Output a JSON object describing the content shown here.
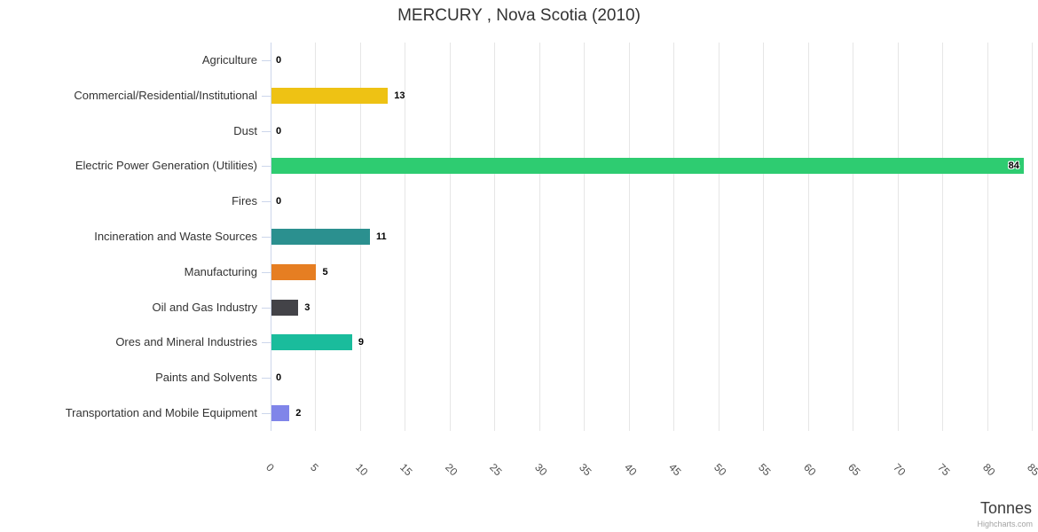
{
  "chart_data": {
    "type": "bar",
    "orientation": "horizontal",
    "title": "MERCURY , Nova Scotia (2010)",
    "categories": [
      "Agriculture",
      "Commercial/Residential/Institutional",
      "Dust",
      "Electric Power Generation (Utilities)",
      "Fires",
      "Incineration and Waste Sources",
      "Manufacturing",
      "Oil and Gas Industry",
      "Ores and Mineral Industries",
      "Paints and Solvents",
      "Transportation and Mobile Equipment"
    ],
    "values": [
      0,
      13,
      0,
      84,
      0,
      11,
      5,
      3,
      9,
      0,
      2
    ],
    "bar_colors": [
      null,
      "#EEC214",
      null,
      "#2ECC71",
      null,
      "#2B908F",
      "#E67E22",
      "#434348",
      "#1ABC9C",
      null,
      "#8085E9"
    ],
    "value_axis": {
      "label": "Tonnes",
      "min": 0,
      "max": 85,
      "tick_interval": 5,
      "ticks": [
        0,
        5,
        10,
        15,
        20,
        25,
        30,
        35,
        40,
        45,
        50,
        55,
        60,
        65,
        70,
        75,
        80,
        85
      ],
      "tick_label_rotation": 45
    },
    "grid": {
      "vertical": true,
      "horizontal": false
    },
    "legend": false,
    "credits": "Highcharts.com"
  },
  "style_colors": {
    "background": "#ffffff",
    "gridline": "#e6e6e6",
    "axis_line": "#ccd6eb",
    "title_text": "#333333",
    "category_text": "#333333",
    "tick_text": "#4d4d4d",
    "data_label_text": "#000000",
    "axis_title_text": "#3b3b3b",
    "credits_text": "#a3a3a3"
  }
}
